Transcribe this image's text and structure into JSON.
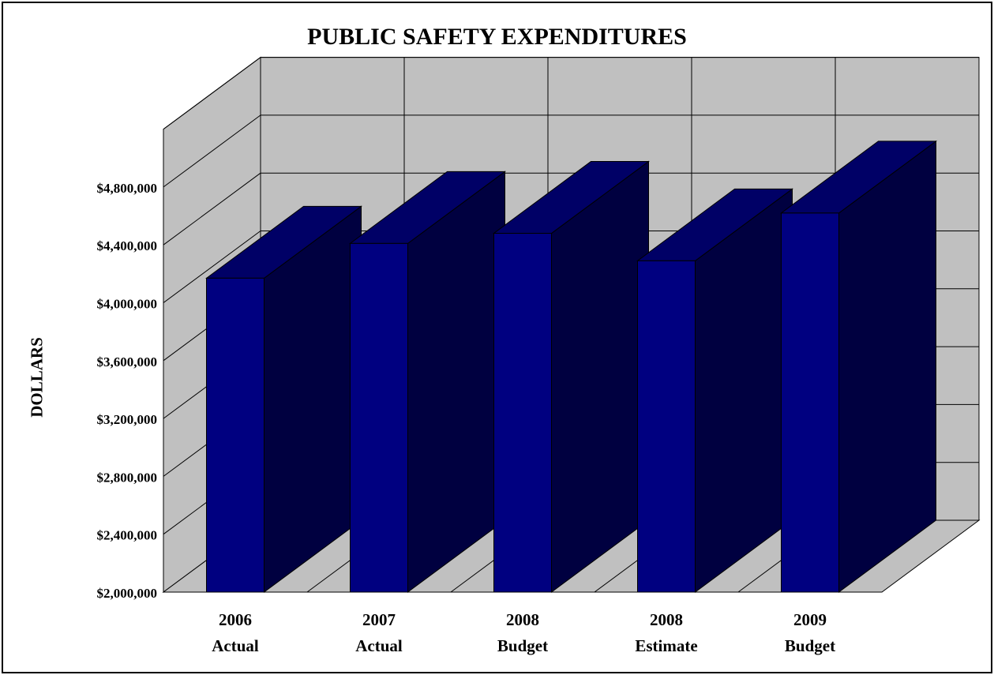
{
  "chart_data": {
    "type": "bar",
    "title": "PUBLIC SAFETY EXPENDITURES",
    "xlabel": "",
    "ylabel": "DOLLARS",
    "ylim": [
      2000000,
      5200000
    ],
    "yticks": [
      2000000,
      2400000,
      2800000,
      3200000,
      3600000,
      4000000,
      4400000,
      4800000
    ],
    "ytick_labels": [
      "$2,000,000",
      "$2,400,000",
      "$2,800,000",
      "$3,200,000",
      "$3,600,000",
      "$4,000,000",
      "$4,400,000",
      "$4,800,000"
    ],
    "categories": [
      [
        "2006",
        "Actual"
      ],
      [
        "2007",
        "Actual"
      ],
      [
        "2008",
        "Budget"
      ],
      [
        "2008",
        "Estimate"
      ],
      [
        "2009",
        "Budget"
      ]
    ],
    "values": [
      4170000,
      4410000,
      4480000,
      4290000,
      4620000
    ],
    "grid": true,
    "legend": "none",
    "three_d": true,
    "colors": {
      "bar_front": "#000080",
      "bar_top": "#000066",
      "bar_side": "#000040",
      "wall": "#c0c0c0",
      "floor": "#c0c0c0"
    }
  }
}
